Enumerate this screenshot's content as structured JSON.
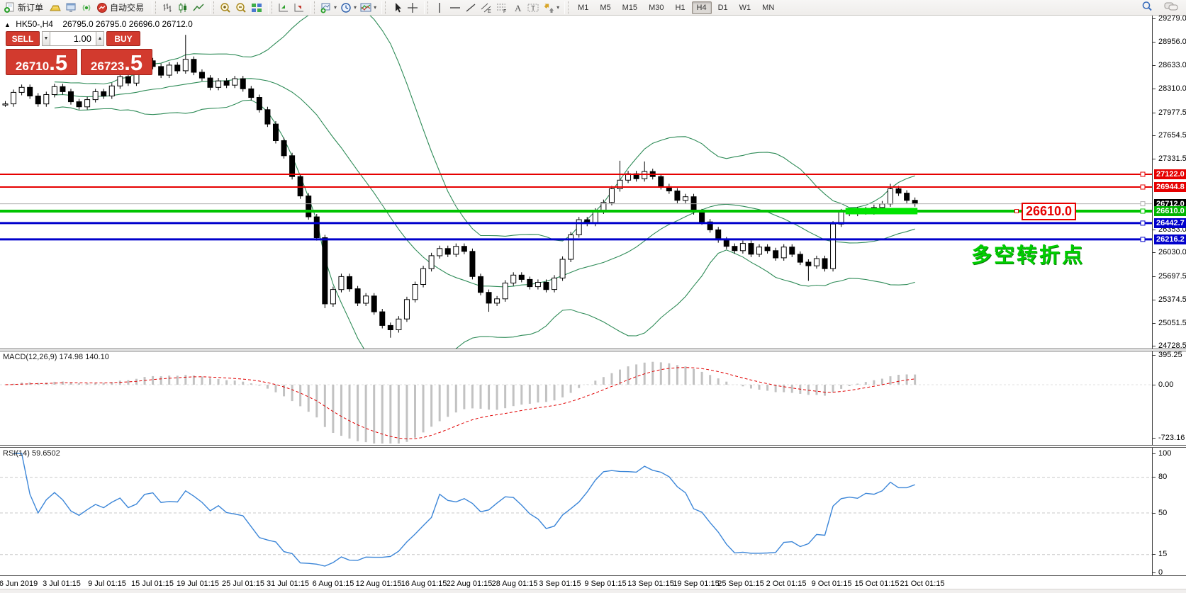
{
  "toolbar": {
    "new_order_label": "新订单",
    "autotrade_label": "自动交易",
    "timeframes": [
      "M1",
      "M5",
      "M15",
      "M30",
      "H1",
      "H4",
      "D1",
      "W1",
      "MN"
    ],
    "active_timeframe": "H4"
  },
  "chart_header": {
    "collapse_icon": "▲",
    "symbol_period": "HK50-,H4",
    "ohlc": "26795.0 26795.0 26696.0 26712.0"
  },
  "trade_panel": {
    "red": "#d23a2e",
    "sell_label": "SELL",
    "buy_label": "BUY",
    "volume": "1.00",
    "sell_price_int": "26710",
    "sell_price_big": ".5",
    "buy_price_int": "26723",
    "buy_price_big": ".5"
  },
  "annotations": {
    "price_note": "26610.0",
    "cn_note": "多空转折点"
  },
  "indicators": {
    "macd": {
      "label": "MACD(12,26,9)",
      "value_main": "174.98",
      "value_signal": "140.10",
      "ticks": [
        "395.25",
        "0.00",
        "-723.16"
      ]
    },
    "rsi": {
      "label": "RSI(14)",
      "value": "59.6502",
      "ticks": [
        "100",
        "80",
        "50",
        "15",
        "0"
      ],
      "levels": [
        80,
        50,
        15
      ]
    }
  },
  "price_axis": {
    "ticks": [
      "29279.0",
      "28956.0",
      "28633.0",
      "28310.0",
      "27977.5",
      "27654.5",
      "27331.5",
      "26353.0",
      "26030.0",
      "25697.5",
      "25374.5",
      "25051.5",
      "24728.5"
    ],
    "line_labels": [
      {
        "text": "27122.0",
        "price": 27122.0,
        "bg": "#e60000"
      },
      {
        "text": "26944.8",
        "price": 26944.8,
        "bg": "#e60000"
      },
      {
        "text": "26712.0",
        "price": 26712.0,
        "bg": "#000000"
      },
      {
        "text": "26610.0",
        "price": 26610.0,
        "bg": "#00b400"
      },
      {
        "text": "26442.7",
        "price": 26442.7,
        "bg": "#0000cc"
      },
      {
        "text": "26216.2",
        "price": 26216.2,
        "bg": "#0000cc"
      }
    ]
  },
  "time_axis": {
    "labels": [
      "26 Jun 2019",
      "3 Jul 01:15",
      "9 Jul 01:15",
      "15 Jul 01:15",
      "19 Jul 01:15",
      "25 Jul 01:15",
      "31 Jul 01:15",
      "6 Aug 01:15",
      "12 Aug 01:15",
      "16 Aug 01:15",
      "22 Aug 01:15",
      "28 Aug 01:15",
      "3 Sep 01:15",
      "9 Sep 01:15",
      "13 Sep 01:15",
      "19 Sep 01:15",
      "25 Sep 01:15",
      "2 Oct 01:15",
      "9 Oct 01:15",
      "15 Oct 01:15",
      "21 Oct 01:15"
    ]
  },
  "chart_data": {
    "type": "candlestick",
    "symbol": "HK50-",
    "timeframe": "H4",
    "title_ohlc": {
      "open": 26795.0,
      "high": 26795.0,
      "low": 26696.0,
      "close": 26712.0
    },
    "price_range": [
      24689,
      29328
    ],
    "closes": [
      28100,
      28260,
      28330,
      28210,
      28100,
      28230,
      28340,
      28270,
      28130,
      28060,
      28160,
      28270,
      28210,
      28350,
      28480,
      28390,
      28560,
      28700,
      28620,
      28500,
      28640,
      28560,
      28720,
      28540,
      28460,
      28330,
      28420,
      28360,
      28450,
      28310,
      28190,
      28020,
      27820,
      27590,
      27380,
      27090,
      26820,
      26530,
      26240,
      25320,
      25520,
      25700,
      25530,
      25330,
      25430,
      25210,
      25020,
      24960,
      25110,
      25380,
      25590,
      25810,
      25990,
      26090,
      26010,
      26120,
      26050,
      25700,
      25480,
      25330,
      25390,
      25610,
      25720,
      25660,
      25560,
      25620,
      25520,
      25680,
      25940,
      26280,
      26490,
      26440,
      26610,
      26730,
      26920,
      27040,
      27130,
      27060,
      27160,
      27090,
      26950,
      26890,
      26760,
      26810,
      26600,
      26460,
      26350,
      26210,
      26120,
      26060,
      26160,
      26010,
      26110,
      26060,
      25960,
      26110,
      26010,
      25900,
      25850,
      25950,
      25810,
      26430,
      26600,
      26580,
      26630,
      26600,
      26660,
      26710,
      26920,
      26860,
      26760,
      26712
    ],
    "special": {
      "high_wicks": {
        "22": 29060,
        "75": 27310,
        "78": 27300,
        "108": 26990
      },
      "low_wicks": {
        "39": 25260,
        "47": 24850,
        "59": 25210,
        "98": 25640
      }
    },
    "hlines": [
      {
        "price": 27122.0,
        "color": "#e60000",
        "width": 2
      },
      {
        "price": 26944.8,
        "color": "#e60000",
        "width": 2
      },
      {
        "price": 26712.0,
        "color": "#b0b0b0",
        "width": 1
      },
      {
        "price": 26610.0,
        "color": "#00c400",
        "width": 4
      },
      {
        "price": 26442.7,
        "color": "#0000cc",
        "width": 3
      },
      {
        "price": 26216.2,
        "color": "#0000cc",
        "width": 3
      }
    ],
    "highlight": {
      "price": 26610.0,
      "from_bar": 103,
      "to_bar": 111,
      "color": "#00e400"
    },
    "bollinger": {
      "period": 20,
      "deviation": 2,
      "color": "#2e8b57"
    },
    "macd": {
      "fast": 12,
      "slow": 26,
      "signal": 9,
      "current_main": 174.98,
      "current_signal": 140.1,
      "hist_color": "#c2c2c2",
      "signal_color": "#e00000",
      "axis": [
        395.25,
        0.0,
        -723.16
      ]
    },
    "rsi": {
      "period": 14,
      "current": 59.6502,
      "color": "#3c86d8",
      "levels": [
        80,
        50,
        15
      ],
      "axis": [
        100,
        80,
        50,
        15,
        0
      ]
    }
  }
}
